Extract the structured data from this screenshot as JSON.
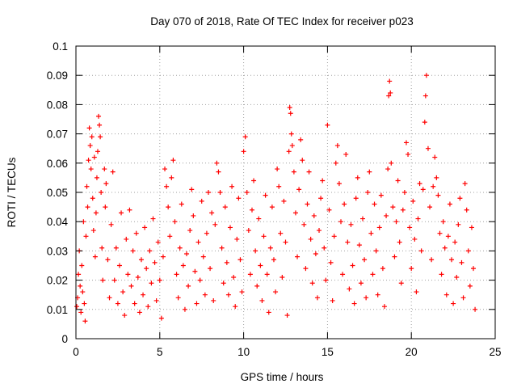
{
  "chart_data": {
    "type": "scatter",
    "title": "Day 070 of 2018, Rate Of TEC Index for receiver p023",
    "xlabel": "GPS time / hours",
    "ylabel": "ROTI / TECUs",
    "xlim": [
      0,
      25
    ],
    "ylim": [
      0,
      0.1
    ],
    "x_ticks": [
      "0",
      "5",
      "10",
      "15",
      "20",
      "25"
    ],
    "y_ticks": [
      "0",
      "0.01",
      "0.02",
      "0.03",
      "0.04",
      "0.05",
      "0.06",
      "0.07",
      "0.08",
      "0.09",
      "0.1"
    ],
    "grid": true,
    "marker": "+",
    "color": "#ff0000",
    "series": [
      {
        "points": [
          [
            0.05,
            0.011
          ],
          [
            0.1,
            0.014
          ],
          [
            0.15,
            0.022
          ],
          [
            0.2,
            0.03
          ],
          [
            0.25,
            0.018
          ],
          [
            0.3,
            0.009
          ],
          [
            0.35,
            0.025
          ],
          [
            0.4,
            0.016
          ],
          [
            0.45,
            0.04
          ],
          [
            0.5,
            0.012
          ],
          [
            0.55,
            0.006
          ],
          [
            0.6,
            0.035
          ],
          [
            0.65,
            0.052
          ],
          [
            0.7,
            0.045
          ],
          [
            0.75,
            0.061
          ],
          [
            0.8,
            0.072
          ],
          [
            0.85,
            0.066
          ],
          [
            0.9,
            0.058
          ],
          [
            0.95,
            0.069
          ],
          [
            1.0,
            0.048
          ],
          [
            1.05,
            0.037
          ],
          [
            1.1,
            0.062
          ],
          [
            1.15,
            0.028
          ],
          [
            1.2,
            0.043
          ],
          [
            1.25,
            0.055
          ],
          [
            1.3,
            0.064
          ],
          [
            1.35,
            0.076
          ],
          [
            1.4,
            0.073
          ],
          [
            1.45,
            0.069
          ],
          [
            1.5,
            0.05
          ],
          [
            1.55,
            0.031
          ],
          [
            1.6,
            0.02
          ],
          [
            1.7,
            0.058
          ],
          [
            1.75,
            0.045
          ],
          [
            1.8,
            0.053
          ],
          [
            1.9,
            0.027
          ],
          [
            2.0,
            0.014
          ],
          [
            2.1,
            0.039
          ],
          [
            2.2,
            0.057
          ],
          [
            2.3,
            0.02
          ],
          [
            2.4,
            0.031
          ],
          [
            2.5,
            0.012
          ],
          [
            2.6,
            0.025
          ],
          [
            2.7,
            0.043
          ],
          [
            2.8,
            0.016
          ],
          [
            2.9,
            0.008
          ],
          [
            3.0,
            0.034
          ],
          [
            3.1,
            0.022
          ],
          [
            3.2,
            0.044
          ],
          [
            3.3,
            0.018
          ],
          [
            3.4,
            0.03
          ],
          [
            3.5,
            0.012
          ],
          [
            3.6,
            0.036
          ],
          [
            3.7,
            0.021
          ],
          [
            3.8,
            0.009
          ],
          [
            3.9,
            0.027
          ],
          [
            4.0,
            0.015
          ],
          [
            4.1,
            0.038
          ],
          [
            4.2,
            0.024
          ],
          [
            4.3,
            0.011
          ],
          [
            4.4,
            0.03
          ],
          [
            4.5,
            0.019
          ],
          [
            4.6,
            0.041
          ],
          [
            4.7,
            0.026
          ],
          [
            4.8,
            0.013
          ],
          [
            4.9,
            0.033
          ],
          [
            5.0,
            0.02
          ],
          [
            5.1,
            0.007
          ],
          [
            5.2,
            0.028
          ],
          [
            5.3,
            0.058
          ],
          [
            5.4,
            0.052
          ],
          [
            5.5,
            0.045
          ],
          [
            5.6,
            0.035
          ],
          [
            5.7,
            0.055
          ],
          [
            5.8,
            0.061
          ],
          [
            5.9,
            0.04
          ],
          [
            6.0,
            0.022
          ],
          [
            6.1,
            0.014
          ],
          [
            6.2,
            0.031
          ],
          [
            6.3,
            0.046
          ],
          [
            6.4,
            0.025
          ],
          [
            6.5,
            0.01
          ],
          [
            6.6,
            0.029
          ],
          [
            6.7,
            0.018
          ],
          [
            6.8,
            0.037
          ],
          [
            6.9,
            0.051
          ],
          [
            7.0,
            0.042
          ],
          [
            7.1,
            0.023
          ],
          [
            7.2,
            0.012
          ],
          [
            7.3,
            0.033
          ],
          [
            7.4,
            0.02
          ],
          [
            7.5,
            0.047
          ],
          [
            7.6,
            0.028
          ],
          [
            7.7,
            0.015
          ],
          [
            7.8,
            0.036
          ],
          [
            7.9,
            0.05
          ],
          [
            8.0,
            0.024
          ],
          [
            8.1,
            0.043
          ],
          [
            8.2,
            0.013
          ],
          [
            8.3,
            0.039
          ],
          [
            8.4,
            0.06
          ],
          [
            8.5,
            0.057
          ],
          [
            8.6,
            0.05
          ],
          [
            8.7,
            0.031
          ],
          [
            8.8,
            0.019
          ],
          [
            8.9,
            0.045
          ],
          [
            9.0,
            0.026
          ],
          [
            9.1,
            0.015
          ],
          [
            9.2,
            0.038
          ],
          [
            9.3,
            0.052
          ],
          [
            9.4,
            0.021
          ],
          [
            9.5,
            0.011
          ],
          [
            9.6,
            0.034
          ],
          [
            9.7,
            0.048
          ],
          [
            9.8,
            0.027
          ],
          [
            9.9,
            0.016
          ],
          [
            10.0,
            0.064
          ],
          [
            10.1,
            0.069
          ],
          [
            10.2,
            0.05
          ],
          [
            10.3,
            0.037
          ],
          [
            10.4,
            0.022
          ],
          [
            10.5,
            0.044
          ],
          [
            10.6,
            0.054
          ],
          [
            10.7,
            0.03
          ],
          [
            10.8,
            0.018
          ],
          [
            10.9,
            0.041
          ],
          [
            11.0,
            0.025
          ],
          [
            11.1,
            0.013
          ],
          [
            11.2,
            0.035
          ],
          [
            11.3,
            0.049
          ],
          [
            11.4,
            0.022
          ],
          [
            11.5,
            0.009
          ],
          [
            11.6,
            0.031
          ],
          [
            11.7,
            0.045
          ],
          [
            11.8,
            0.027
          ],
          [
            11.9,
            0.016
          ],
          [
            12.0,
            0.058
          ],
          [
            12.1,
            0.052
          ],
          [
            12.2,
            0.036
          ],
          [
            12.3,
            0.021
          ],
          [
            12.4,
            0.047
          ],
          [
            12.5,
            0.033
          ],
          [
            12.6,
            0.008
          ],
          [
            12.7,
            0.064
          ],
          [
            12.75,
            0.079
          ],
          [
            12.8,
            0.077
          ],
          [
            12.85,
            0.07
          ],
          [
            12.9,
            0.066
          ],
          [
            13.0,
            0.057
          ],
          [
            13.1,
            0.043
          ],
          [
            13.2,
            0.028
          ],
          [
            13.3,
            0.051
          ],
          [
            13.4,
            0.068
          ],
          [
            13.5,
            0.061
          ],
          [
            13.6,
            0.039
          ],
          [
            13.7,
            0.024
          ],
          [
            13.8,
            0.046
          ],
          [
            13.9,
            0.057
          ],
          [
            14.0,
            0.034
          ],
          [
            14.1,
            0.019
          ],
          [
            14.2,
            0.042
          ],
          [
            14.3,
            0.029
          ],
          [
            14.4,
            0.014
          ],
          [
            14.5,
            0.037
          ],
          [
            14.6,
            0.048
          ],
          [
            14.7,
            0.054
          ],
          [
            14.8,
            0.031
          ],
          [
            14.9,
            0.02
          ],
          [
            15.0,
            0.073
          ],
          [
            15.1,
            0.044
          ],
          [
            15.2,
            0.026
          ],
          [
            15.3,
            0.013
          ],
          [
            15.4,
            0.035
          ],
          [
            15.5,
            0.06
          ],
          [
            15.6,
            0.066
          ],
          [
            15.7,
            0.053
          ],
          [
            15.8,
            0.04
          ],
          [
            15.9,
            0.022
          ],
          [
            16.0,
            0.046
          ],
          [
            16.1,
            0.063
          ],
          [
            16.2,
            0.033
          ],
          [
            16.3,
            0.017
          ],
          [
            16.4,
            0.039
          ],
          [
            16.5,
            0.025
          ],
          [
            16.6,
            0.012
          ],
          [
            16.7,
            0.048
          ],
          [
            16.8,
            0.055
          ],
          [
            16.9,
            0.032
          ],
          [
            17.0,
            0.019
          ],
          [
            17.1,
            0.041
          ],
          [
            17.2,
            0.027
          ],
          [
            17.3,
            0.014
          ],
          [
            17.4,
            0.05
          ],
          [
            17.5,
            0.057
          ],
          [
            17.6,
            0.036
          ],
          [
            17.7,
            0.022
          ],
          [
            17.8,
            0.046
          ],
          [
            17.9,
            0.03
          ],
          [
            18.0,
            0.015
          ],
          [
            18.1,
            0.038
          ],
          [
            18.2,
            0.049
          ],
          [
            18.3,
            0.024
          ],
          [
            18.4,
            0.011
          ],
          [
            18.5,
            0.042
          ],
          [
            18.6,
            0.058
          ],
          [
            18.65,
            0.083
          ],
          [
            18.7,
            0.088
          ],
          [
            18.75,
            0.084
          ],
          [
            18.8,
            0.06
          ],
          [
            18.9,
            0.045
          ],
          [
            19.0,
            0.028
          ],
          [
            19.1,
            0.04
          ],
          [
            19.2,
            0.054
          ],
          [
            19.3,
            0.033
          ],
          [
            19.4,
            0.019
          ],
          [
            19.5,
            0.044
          ],
          [
            19.6,
            0.05
          ],
          [
            19.7,
            0.067
          ],
          [
            19.8,
            0.063
          ],
          [
            19.9,
            0.038
          ],
          [
            20.0,
            0.024
          ],
          [
            20.1,
            0.047
          ],
          [
            20.2,
            0.034
          ],
          [
            20.3,
            0.016
          ],
          [
            20.4,
            0.041
          ],
          [
            20.5,
            0.053
          ],
          [
            20.6,
            0.03
          ],
          [
            20.7,
            0.051
          ],
          [
            20.8,
            0.074
          ],
          [
            20.85,
            0.083
          ],
          [
            20.9,
            0.09
          ],
          [
            21.0,
            0.065
          ],
          [
            21.1,
            0.045
          ],
          [
            21.2,
            0.027
          ],
          [
            21.3,
            0.052
          ],
          [
            21.4,
            0.062
          ],
          [
            21.5,
            0.055
          ],
          [
            21.6,
            0.049
          ],
          [
            21.7,
            0.036
          ],
          [
            21.8,
            0.022
          ],
          [
            21.9,
            0.04
          ],
          [
            22.0,
            0.031
          ],
          [
            22.1,
            0.015
          ],
          [
            22.2,
            0.035
          ],
          [
            22.3,
            0.046
          ],
          [
            22.4,
            0.027
          ],
          [
            22.5,
            0.012
          ],
          [
            22.6,
            0.033
          ],
          [
            22.7,
            0.021
          ],
          [
            22.8,
            0.039
          ],
          [
            22.9,
            0.048
          ],
          [
            23.0,
            0.026
          ],
          [
            23.1,
            0.014
          ],
          [
            23.2,
            0.053
          ],
          [
            23.3,
            0.044
          ],
          [
            23.4,
            0.03
          ],
          [
            23.5,
            0.018
          ],
          [
            23.6,
            0.038
          ],
          [
            23.7,
            0.024
          ],
          [
            23.8,
            0.01
          ]
        ]
      }
    ]
  }
}
